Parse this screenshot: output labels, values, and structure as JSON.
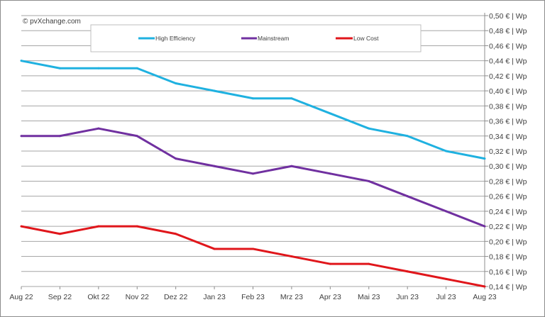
{
  "chart_data": {
    "type": "line",
    "title": "",
    "copyright": "© pvXchange.com",
    "xlabel": "",
    "ylabel": "",
    "categories": [
      "Aug 22",
      "Sep 22",
      "Okt 22",
      "Nov 22",
      "Dez 22",
      "Jan 23",
      "Feb 23",
      "Mrz 23",
      "Apr 23",
      "Mai 23",
      "Jun 23",
      "Jul 23",
      "Aug 23"
    ],
    "ylim": [
      0.14,
      0.5
    ],
    "y_ticks": [
      0.14,
      0.16,
      0.18,
      0.2,
      0.22,
      0.24,
      0.26,
      0.28,
      0.3,
      0.32,
      0.34,
      0.36,
      0.38,
      0.4,
      0.42,
      0.44,
      0.46,
      0.48,
      0.5
    ],
    "y_tick_labels": [
      "0,14 € | Wp",
      "0,16 € | Wp",
      "0,18 € | Wp",
      "0,20 € | Wp",
      "0,22 € | Wp",
      "0,24 € | Wp",
      "0,26 € | Wp",
      "0,28 € | Wp",
      "0,30 € | Wp",
      "0,32 € | Wp",
      "0,34 € | Wp",
      "0,36 € | Wp",
      "0,38 € | Wp",
      "0,40 € | Wp",
      "0,42 € | Wp",
      "0,44 € | Wp",
      "0,46 € | Wp",
      "0,48 € | Wp",
      "0,50 € | Wp"
    ],
    "y_axis_position": "right",
    "grid": "horizontal",
    "legend_position": "top",
    "series": [
      {
        "name": "High Efficiency",
        "color": "#1fb1e0",
        "values": [
          0.44,
          0.43,
          0.43,
          0.43,
          0.41,
          0.4,
          0.39,
          0.39,
          0.37,
          0.35,
          0.34,
          0.32,
          0.31
        ]
      },
      {
        "name": "Mainstream",
        "color": "#7030a0",
        "values": [
          0.34,
          0.34,
          0.35,
          0.34,
          0.31,
          0.3,
          0.29,
          0.3,
          0.29,
          0.28,
          0.26,
          0.24,
          0.22
        ]
      },
      {
        "name": "Low Cost",
        "color": "#e0161b",
        "values": [
          0.22,
          0.21,
          0.22,
          0.22,
          0.21,
          0.19,
          0.19,
          0.18,
          0.17,
          0.17,
          0.16,
          0.15,
          0.14
        ]
      }
    ]
  }
}
